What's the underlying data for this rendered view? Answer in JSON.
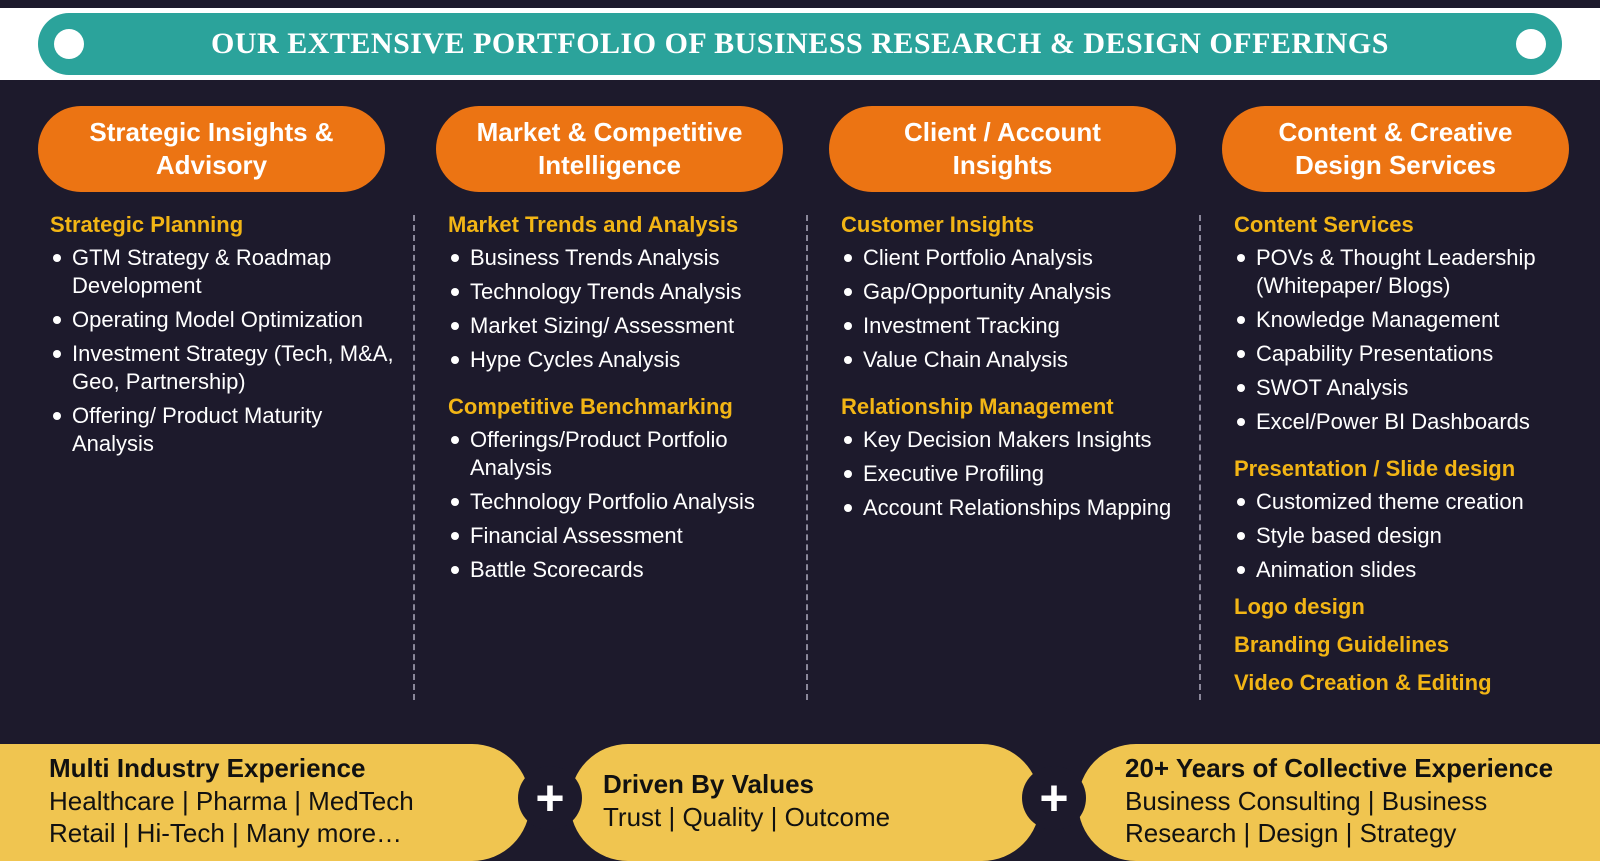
{
  "banner": {
    "title": "OUR EXTENSIVE PORTFOLIO OF BUSINESS RESEARCH & DESIGN OFFERINGS"
  },
  "columns": [
    {
      "title_lines": [
        "Strategic Insights &",
        "Advisory"
      ],
      "sections": [
        {
          "heading": "Strategic Planning",
          "items": [
            "GTM Strategy & Roadmap Development",
            "Operating Model Optimization",
            "Investment Strategy (Tech, M&A, Geo, Partnership)",
            "Offering/ Product Maturity Analysis"
          ]
        }
      ]
    },
    {
      "title_lines": [
        "Market & Competitive",
        "Intelligence"
      ],
      "sections": [
        {
          "heading": "Market Trends and Analysis",
          "items": [
            "Business Trends Analysis",
            "Technology Trends Analysis",
            "Market Sizing/ Assessment",
            "Hype Cycles Analysis"
          ]
        },
        {
          "heading": "Competitive Benchmarking",
          "items": [
            "Offerings/Product Portfolio Analysis",
            "Technology Portfolio Analysis",
            "Financial Assessment",
            "Battle Scorecards"
          ]
        }
      ]
    },
    {
      "title_lines": [
        "Client / Account",
        "Insights"
      ],
      "sections": [
        {
          "heading": "Customer Insights",
          "items": [
            "Client Portfolio Analysis",
            "Gap/Opportunity Analysis",
            "Investment Tracking",
            "Value Chain Analysis"
          ]
        },
        {
          "heading": "Relationship Management",
          "items": [
            "Key Decision Makers Insights",
            "Executive Profiling",
            "Account Relationships Mapping"
          ]
        }
      ]
    },
    {
      "title_lines": [
        "Content & Creative",
        "Design Services"
      ],
      "sections": [
        {
          "heading": "Content Services",
          "items": [
            "POVs & Thought Leadership (Whitepaper/ Blogs)",
            "Knowledge Management",
            "Capability Presentations",
            "SWOT Analysis",
            "Excel/Power BI Dashboards"
          ]
        },
        {
          "heading": "Presentation / Slide design",
          "items": [
            "Customized theme creation",
            "Style based design",
            "Animation slides"
          ]
        },
        {
          "heading": "Logo design",
          "items": []
        },
        {
          "heading": "Branding Guidelines",
          "items": []
        },
        {
          "heading": "Video Creation & Editing",
          "items": []
        }
      ]
    }
  ],
  "bottom": {
    "segments": [
      {
        "title": "Multi Industry Experience",
        "lines": [
          "Healthcare | Pharma | MedTech",
          "Retail | Hi-Tech | Many more…"
        ]
      },
      {
        "title": "Driven By Values",
        "lines": [
          "Trust | Quality | Outcome"
        ]
      },
      {
        "title": "20+ Years of Collective Experience",
        "lines": [
          "Business Consulting | Business",
          "Research | Design | Strategy"
        ]
      }
    ],
    "separator": "+"
  },
  "colors": {
    "background": "#1d1a2c",
    "banner": "#2ba39b",
    "pill": "#ec7413",
    "heading": "#f2b515",
    "bottom_band": "#f0c550"
  }
}
